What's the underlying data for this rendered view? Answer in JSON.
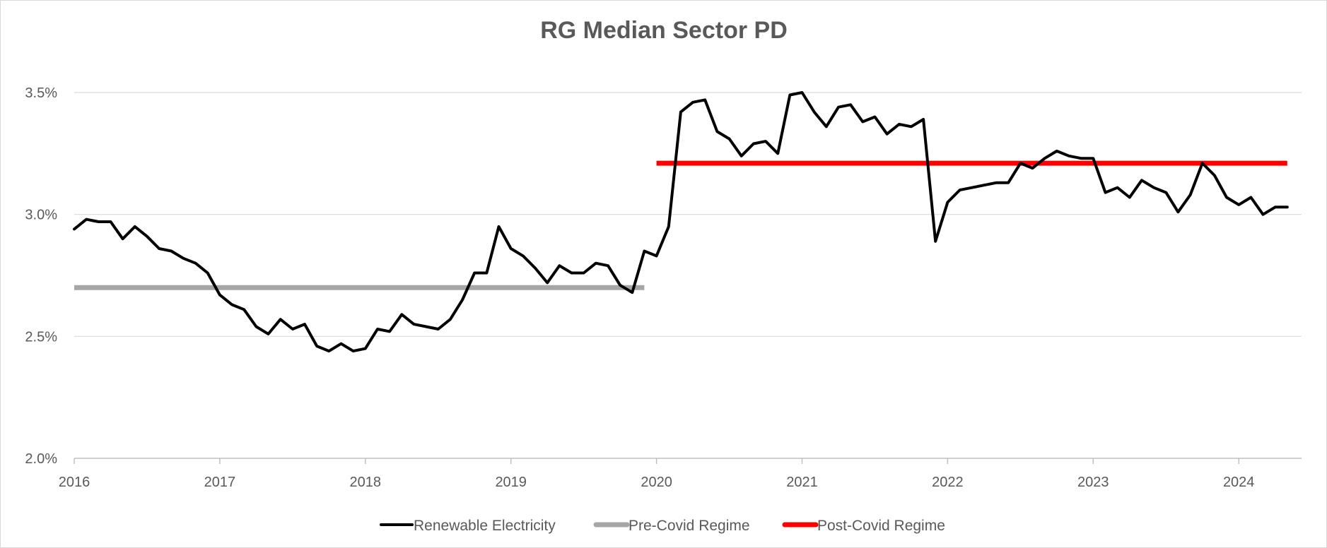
{
  "chart_data": {
    "type": "line",
    "title": "RG Median Sector PD",
    "xlabel": "",
    "ylabel": "",
    "x_ticks": [
      "2016",
      "2017",
      "2018",
      "2019",
      "2020",
      "2021",
      "2022",
      "2023",
      "2024"
    ],
    "y_ticks": [
      "2.0%",
      "2.5%",
      "3.0%",
      "3.5%"
    ],
    "xlim": [
      "2016-01",
      "2024-05"
    ],
    "ylim": [
      2.0,
      3.5
    ],
    "grid": "horizontal",
    "legend_position": "bottom",
    "series": [
      {
        "name": "Renewable Electricity",
        "color": "#000000",
        "x": [
          "2016-01",
          "2016-02",
          "2016-03",
          "2016-04",
          "2016-05",
          "2016-06",
          "2016-07",
          "2016-08",
          "2016-09",
          "2016-10",
          "2016-11",
          "2016-12",
          "2017-01",
          "2017-02",
          "2017-03",
          "2017-04",
          "2017-05",
          "2017-06",
          "2017-07",
          "2017-08",
          "2017-09",
          "2017-10",
          "2017-11",
          "2017-12",
          "2018-01",
          "2018-02",
          "2018-03",
          "2018-04",
          "2018-05",
          "2018-06",
          "2018-07",
          "2018-08",
          "2018-09",
          "2018-10",
          "2018-11",
          "2018-12",
          "2019-01",
          "2019-02",
          "2019-03",
          "2019-04",
          "2019-05",
          "2019-06",
          "2019-07",
          "2019-08",
          "2019-09",
          "2019-10",
          "2019-11",
          "2019-12",
          "2020-01",
          "2020-02",
          "2020-03",
          "2020-04",
          "2020-05",
          "2020-06",
          "2020-07",
          "2020-08",
          "2020-09",
          "2020-10",
          "2020-11",
          "2020-12",
          "2021-01",
          "2021-02",
          "2021-03",
          "2021-04",
          "2021-05",
          "2021-06",
          "2021-07",
          "2021-08",
          "2021-09",
          "2021-10",
          "2021-11",
          "2021-12",
          "2022-01",
          "2022-02",
          "2022-03",
          "2022-04",
          "2022-05",
          "2022-06",
          "2022-07",
          "2022-08",
          "2022-09",
          "2022-10",
          "2022-11",
          "2022-12",
          "2023-01",
          "2023-02",
          "2023-03",
          "2023-04",
          "2023-05",
          "2023-06",
          "2023-07",
          "2023-08",
          "2023-09",
          "2023-10",
          "2023-11",
          "2023-12",
          "2024-01",
          "2024-02",
          "2024-03",
          "2024-04",
          "2024-05"
        ],
        "values": [
          2.94,
          2.98,
          2.97,
          2.97,
          2.9,
          2.95,
          2.91,
          2.86,
          2.85,
          2.82,
          2.8,
          2.76,
          2.67,
          2.63,
          2.61,
          2.54,
          2.51,
          2.57,
          2.53,
          2.55,
          2.46,
          2.44,
          2.47,
          2.44,
          2.45,
          2.53,
          2.52,
          2.59,
          2.55,
          2.54,
          2.53,
          2.57,
          2.65,
          2.76,
          2.76,
          2.95,
          2.86,
          2.83,
          2.78,
          2.72,
          2.79,
          2.76,
          2.76,
          2.8,
          2.79,
          2.71,
          2.68,
          2.85,
          2.83,
          2.95,
          3.42,
          3.46,
          3.47,
          3.34,
          3.31,
          3.24,
          3.29,
          3.3,
          3.25,
          3.49,
          3.5,
          3.42,
          3.36,
          3.44,
          3.45,
          3.38,
          3.4,
          3.33,
          3.37,
          3.36,
          3.39,
          2.89,
          3.05,
          3.1,
          3.11,
          3.12,
          3.13,
          3.13,
          3.21,
          3.19,
          3.23,
          3.26,
          3.24,
          3.23,
          3.23,
          3.09,
          3.11,
          3.07,
          3.14,
          3.11,
          3.09,
          3.01,
          3.08,
          3.21,
          3.16,
          3.07,
          3.04,
          3.07,
          3.0,
          3.03,
          3.03
        ]
      },
      {
        "name": "Pre-Covid Regime",
        "color": "#a6a6a6",
        "x": [
          "2016-01",
          "2019-12"
        ],
        "values": [
          2.7,
          2.7
        ]
      },
      {
        "name": "Post-Covid Regime",
        "color": "#ff0000",
        "x": [
          "2020-01",
          "2024-05"
        ],
        "values": [
          3.21,
          3.21
        ]
      }
    ]
  }
}
